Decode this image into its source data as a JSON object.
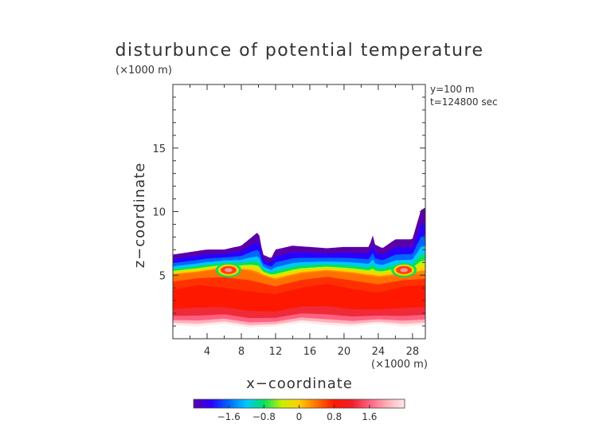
{
  "chart_data": {
    "type": "heatmap",
    "title": "disturbunce of potential temperature",
    "unit_label_top": "(×1000 m)",
    "xlabel": "x−coordinate",
    "ylabel": "z−coordinate",
    "x_unit": "(×1000 m)",
    "annotations": [
      "y=100  m",
      "t=124800 sec"
    ],
    "xlim": [
      0,
      29.5
    ],
    "ylim": [
      0,
      20
    ],
    "x_ticks": [
      4,
      8,
      12,
      16,
      20,
      24,
      28
    ],
    "y_ticks": [
      5,
      10,
      15
    ],
    "colorbar": {
      "range": [
        -2.4,
        2.4
      ],
      "ticks": [
        -1.6,
        -0.8,
        0,
        0.8,
        1.6
      ],
      "tick_labels": [
        "−1.6",
        "−0.8",
        "0",
        "0.8",
        "1.6"
      ],
      "colors": [
        "#5b00a8",
        "#2a00ff",
        "#0068ff",
        "#00c8ff",
        "#00e060",
        "#c8f000",
        "#ffd000",
        "#ff7000",
        "#ff1800",
        "#f01e28",
        "#ff6080",
        "#ffb0b8",
        "#ffe8ea"
      ]
    },
    "profile_x": [
      0,
      2,
      4,
      6,
      8,
      10,
      10.5,
      11.5,
      12,
      14,
      16,
      18,
      20,
      22,
      23,
      23.3,
      23.6,
      24.5,
      26,
      28,
      29,
      29.5
    ],
    "top_boundary_z": [
      6.6,
      6.8,
      7.0,
      7.0,
      7.3,
      8.4,
      6.6,
      6.3,
      7.0,
      7.3,
      7.2,
      7.1,
      7.2,
      7.2,
      7.2,
      8.2,
      7.4,
      7.1,
      7.8,
      7.8,
      10.1,
      10.3
    ],
    "band_x": [
      0,
      3,
      6,
      9,
      12,
      15,
      18,
      21,
      24,
      27,
      29.5
    ],
    "warm_core_top_z": [
      5.0,
      5.2,
      5.5,
      5.3,
      4.6,
      5.1,
      5.3,
      5.1,
      4.8,
      5.0,
      5.1
    ],
    "hot_core_top_z": [
      3.8,
      4.2,
      4.0,
      3.7,
      3.5,
      4.0,
      4.3,
      3.9,
      3.6,
      4.1,
      4.2
    ],
    "bottom_boundary_z": [
      1.1,
      1.0,
      1.2,
      0.9,
      1.0,
      1.3,
      1.1,
      1.0,
      1.2,
      1.0,
      1.1
    ],
    "local_maxima": [
      {
        "x": 6.5,
        "z": 5.4,
        "value": 1.6
      },
      {
        "x": 27.0,
        "z": 5.4,
        "value": 1.6
      }
    ]
  }
}
